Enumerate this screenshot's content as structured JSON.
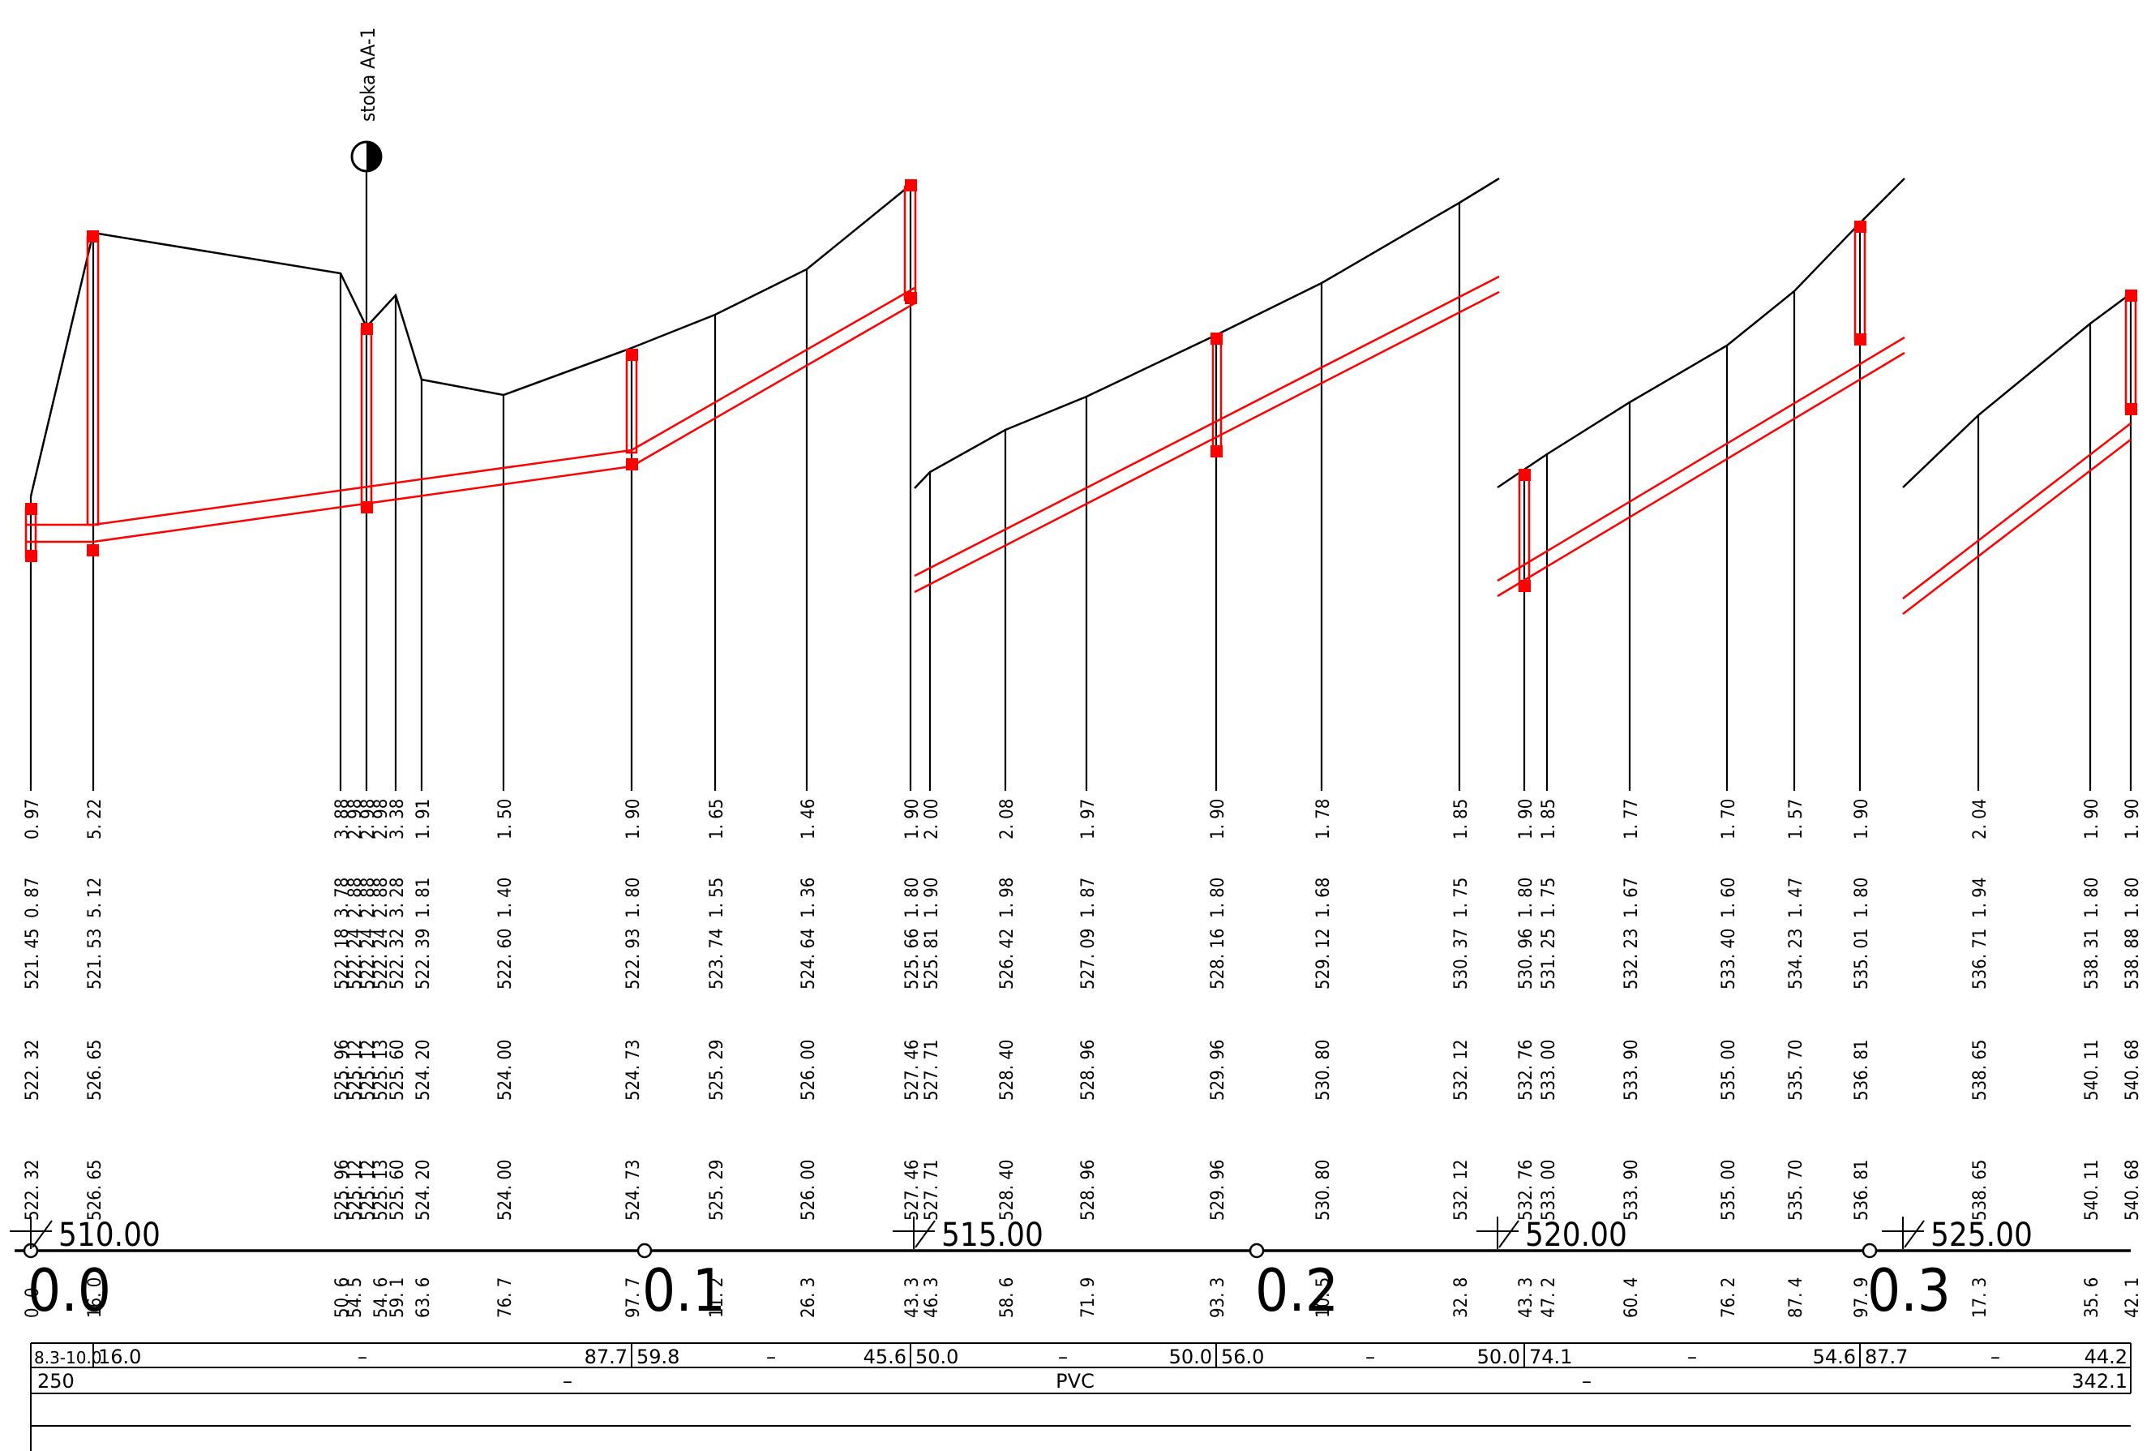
{
  "manhole_label": "studnia-icon",
  "manhole": {
    "name": "stoka  AA-1"
  },
  "chainage_marks": [
    "510.00",
    "515.00",
    "520.00",
    "525.00"
  ],
  "km_marks": [
    "0.0",
    "0.1",
    "0.2",
    "0.3"
  ],
  "stations": [
    {
      "v": [
        "522. 32",
        "522. 32",
        "521. 45",
        "0. 87",
        "0. 97"
      ],
      "d": "0. 0"
    },
    {
      "v": [
        "526. 65",
        "526. 65",
        "521. 53",
        "5. 12",
        "5. 22"
      ],
      "d": "16. 0"
    },
    {
      "v": [
        "525. 96",
        "525. 96",
        "522. 18",
        "3. 78",
        "3. 88"
      ],
      "d": "50. 6"
    },
    {
      "v": [
        "525. 12",
        "525. 12",
        "522. 24",
        "2. 88",
        "2. 98"
      ],
      "d": "54. 5"
    },
    {
      "v": [
        "525. 12",
        "525. 12",
        "522. 24",
        "2. 88",
        "2. 98"
      ],
      "d": ""
    },
    {
      "v": [
        "525. 13",
        "525. 13",
        "522. 24",
        "2. 88",
        "2. 98"
      ],
      "d": "54. 6"
    },
    {
      "v": [
        "525. 60",
        "525. 60",
        "522. 32",
        "3. 28",
        "3. 38"
      ],
      "d": "59. 1"
    },
    {
      "v": [
        "524. 20",
        "524. 20",
        "522. 39",
        "1. 81",
        "1. 91"
      ],
      "d": "63. 6"
    },
    {
      "v": [
        "524. 00",
        "524. 00",
        "522. 60",
        "1. 40",
        "1. 50"
      ],
      "d": "76. 7"
    },
    {
      "v": [
        "524. 73",
        "524. 73",
        "522. 93",
        "1. 80",
        "1. 90"
      ],
      "d": "97. 7"
    },
    {
      "v": [
        "525. 29",
        "525. 29",
        "523. 74",
        "1. 55",
        "1. 65"
      ],
      "d": "11. 2"
    },
    {
      "v": [
        "526. 00",
        "526. 00",
        "524. 64",
        "1. 36",
        "1. 46"
      ],
      "d": "26. 3"
    },
    {
      "v": [
        "527. 46",
        "527. 46",
        "525. 66",
        "1. 80",
        "1. 90"
      ],
      "d": "43. 3"
    },
    {
      "v": [
        "527. 71",
        "527. 71",
        "525. 81",
        "1. 90",
        "2. 00"
      ],
      "d": "46. 3"
    },
    {
      "v": [
        "528. 40",
        "528. 40",
        "526. 42",
        "1. 98",
        "2. 08"
      ],
      "d": "58. 6"
    },
    {
      "v": [
        "528. 96",
        "528. 96",
        "527. 09",
        "1. 87",
        "1. 97"
      ],
      "d": "71. 9"
    },
    {
      "v": [
        "529. 96",
        "529. 96",
        "528. 16",
        "1. 80",
        "1. 90"
      ],
      "d": "93. 3"
    },
    {
      "v": [
        "530. 80",
        "530. 80",
        "529. 12",
        "1. 68",
        "1. 78"
      ],
      "d": "10. 5"
    },
    {
      "v": [
        "532. 12",
        "532. 12",
        "530. 37",
        "1. 75",
        "1. 85"
      ],
      "d": "32. 8"
    },
    {
      "v": [
        "532. 76",
        "532. 76",
        "530. 96",
        "1. 80",
        "1. 90"
      ],
      "d": "43. 3"
    },
    {
      "v": [
        "533. 00",
        "533. 00",
        "531. 25",
        "1. 75",
        "1. 85"
      ],
      "d": "47. 2"
    },
    {
      "v": [
        "533. 90",
        "533. 90",
        "532. 23",
        "1. 67",
        "1. 77"
      ],
      "d": "60. 4"
    },
    {
      "v": [
        "535. 00",
        "535. 00",
        "533. 40",
        "1. 60",
        "1. 70"
      ],
      "d": "76. 2"
    },
    {
      "v": [
        "535. 70",
        "535. 70",
        "534. 23",
        "1. 47",
        "1. 57"
      ],
      "d": "87. 4"
    },
    {
      "v": [
        "536. 81",
        "536. 81",
        "535. 01",
        "1. 80",
        "1. 90"
      ],
      "d": "97. 9"
    },
    {
      "v": [
        "538. 65",
        "538. 65",
        "536. 71",
        "1. 94",
        "2. 04"
      ],
      "d": "17. 3"
    },
    {
      "v": [
        "540. 11",
        "540. 11",
        "538. 31",
        "1. 80",
        "1. 90"
      ],
      "d": "35. 6"
    },
    {
      "v": [
        "540. 68",
        "540. 68",
        "538. 88",
        "1. 80",
        "1. 90"
      ],
      "d": "42. 1"
    }
  ],
  "table_row1": [
    {
      "text": "8.3-10.0"
    },
    {
      "text": "16.0"
    },
    {
      "text": "–"
    },
    {
      "text": "87.7"
    },
    {
      "text": "59.8"
    },
    {
      "text": "–"
    },
    {
      "text": "45.6"
    },
    {
      "text": "50.0"
    },
    {
      "text": "–"
    },
    {
      "text": "50.0"
    },
    {
      "text": "56.0"
    },
    {
      "text": "–"
    },
    {
      "text": "50.0"
    },
    {
      "text": "74.1"
    },
    {
      "text": "–"
    },
    {
      "text": "54.6"
    },
    {
      "text": "87.7"
    },
    {
      "text": "–"
    },
    {
      "text": "44.2"
    }
  ],
  "table_row2": [
    {
      "text": "250"
    },
    {
      "text": "–"
    },
    {
      "text": "PVC"
    },
    {
      "text": "–"
    },
    {
      "text": "342.1"
    }
  ],
  "colors": {
    "ground": "#000000",
    "pipe": "#ff0000",
    "node": "#ff0000"
  }
}
